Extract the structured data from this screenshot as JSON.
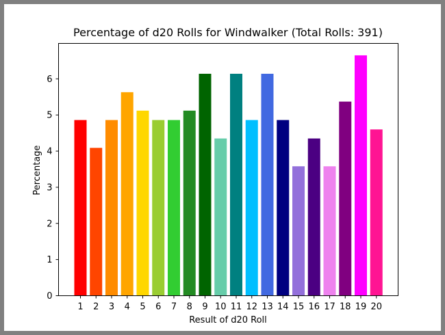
{
  "chart_data": {
    "type": "bar",
    "title": "Percentage of d20 Rolls for Windwalker (Total Rolls: 391)",
    "xlabel": "Result of d20 Roll",
    "ylabel": "Percentage",
    "categories": [
      "1",
      "2",
      "3",
      "4",
      "5",
      "6",
      "7",
      "8",
      "9",
      "10",
      "11",
      "12",
      "13",
      "14",
      "15",
      "16",
      "17",
      "18",
      "19",
      "20"
    ],
    "values": [
      4.86,
      4.09,
      4.86,
      5.63,
      5.12,
      4.86,
      4.86,
      5.12,
      6.14,
      4.35,
      6.14,
      4.86,
      6.14,
      4.86,
      3.58,
      4.35,
      3.58,
      5.37,
      6.65,
      4.6
    ],
    "colors": [
      "#ff0000",
      "#ff4500",
      "#ff8c00",
      "#ffa500",
      "#ffd700",
      "#9acd32",
      "#32cd32",
      "#228b22",
      "#006400",
      "#66cdaa",
      "#008080",
      "#00bfff",
      "#4169e1",
      "#000080",
      "#9370db",
      "#4b0082",
      "#ee82ee",
      "#800080",
      "#ff00ff",
      "#ff1493"
    ],
    "yticks": [
      "0",
      "1",
      "2",
      "3",
      "4",
      "5",
      "6"
    ],
    "ylim": [
      0,
      6.98
    ],
    "grid": false,
    "legend": "none"
  }
}
